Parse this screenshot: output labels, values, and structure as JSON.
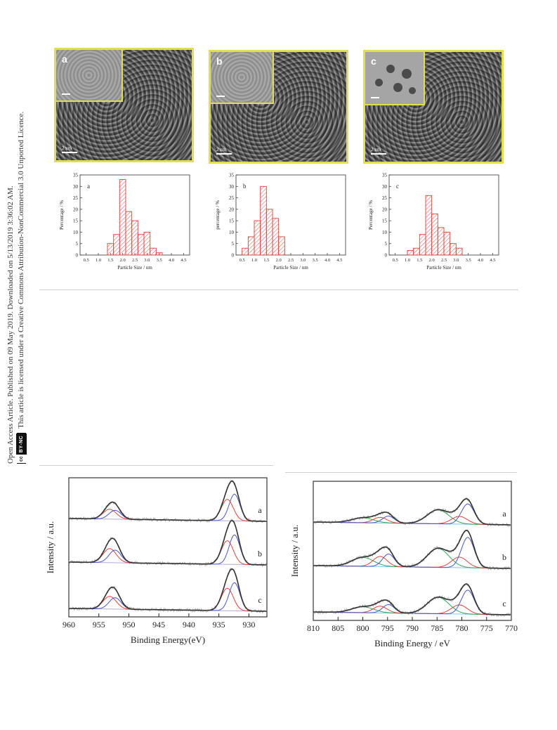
{
  "sidebar": {
    "line1": "Open Access Article. Published on 09 May 2019. Downloaded on 5/13/2019 3:36:02 AM.",
    "line2": "This article is licensed under a Creative Commons Attribution-NonCommercial 3.0 Unported Licence.",
    "badge_cc": "cc",
    "badge_by": "BY-NC"
  },
  "tem_panels": [
    {
      "letter": "a",
      "scale_label": "2 nm"
    },
    {
      "letter": "b",
      "scale_label": "2 nm"
    },
    {
      "letter": "c",
      "scale_label": "2 nm"
    }
  ],
  "chart_data": [
    {
      "type": "bar",
      "panel_label": "a",
      "xlabel": "Particle Size / nm",
      "ylabel": "Percentage / %",
      "xlim": [
        0.25,
        4.75
      ],
      "ylim": [
        0,
        35
      ],
      "xticks": [
        "0.5",
        "1.0",
        "1.5",
        "2.0",
        "2.5",
        "3.0",
        "3.5",
        "4.0",
        "4.5"
      ],
      "yticks": [
        "0",
        "5",
        "10",
        "15",
        "20",
        "25",
        "30",
        "35"
      ],
      "bin_width": 0.25,
      "x": [
        1.5,
        1.75,
        2.0,
        2.25,
        2.5,
        2.75,
        3.0,
        3.25,
        3.5,
        3.75
      ],
      "values": [
        5,
        9,
        33,
        19,
        15,
        9,
        10,
        3,
        1,
        0
      ],
      "color": "#e0413a"
    },
    {
      "type": "bar",
      "panel_label": "b",
      "xlabel": "Particle Size / nm",
      "ylabel": "percentage / %",
      "xlim": [
        0.25,
        4.75
      ],
      "ylim": [
        0,
        35
      ],
      "xticks": [
        "0.5",
        "1.0",
        "1.5",
        "2.0",
        "2.5",
        "3.0",
        "3.5",
        "4.0",
        "4.5"
      ],
      "yticks": [
        "0",
        "5",
        "10",
        "15",
        "20",
        "25",
        "30",
        "35"
      ],
      "bin_width": 0.25,
      "x": [
        0.625,
        0.875,
        1.125,
        1.375,
        1.625,
        1.875,
        2.125,
        2.375
      ],
      "values": [
        3,
        8,
        15,
        30,
        20,
        16,
        8,
        0
      ],
      "color": "#e0413a"
    },
    {
      "type": "bar",
      "panel_label": "c",
      "xlabel": "Particle Size / nm",
      "ylabel": "Percentage / %",
      "xlim": [
        0.25,
        4.75
      ],
      "ylim": [
        0,
        35
      ],
      "xticks": [
        "0.5",
        "1.0",
        "1.5",
        "2.0",
        "2.5",
        "3.0",
        "3.5",
        "4.0",
        "4.5"
      ],
      "yticks": [
        "0",
        "5",
        "10",
        "15",
        "20",
        "25",
        "30",
        "35"
      ],
      "bin_width": 0.25,
      "x": [
        1.125,
        1.375,
        1.625,
        1.875,
        2.125,
        2.375,
        2.625,
        2.875,
        3.125,
        3.375
      ],
      "values": [
        2,
        3,
        9,
        26,
        18,
        12,
        10,
        5,
        3,
        0
      ],
      "color": "#e0413a"
    },
    {
      "type": "line",
      "xlabel": "Binding Energy(eV)",
      "ylabel": "Intensity / a.u.",
      "xlim": [
        960,
        927
      ],
      "xticks": [
        "960",
        "955",
        "950",
        "945",
        "940",
        "935",
        "930"
      ],
      "series_labels": [
        "a",
        "b",
        "c"
      ],
      "peaks": [
        952.5,
        932.5
      ],
      "colors": {
        "data": "#aaaaaa",
        "envelope": "#333333",
        "fit1": "#e0413a",
        "fit2": "#4a55c8",
        "baseline": "#b6a9d9"
      }
    },
    {
      "type": "line",
      "xlabel": "Binding Energy / eV",
      "ylabel": "Intensity / a.u.",
      "xlim": [
        810,
        770
      ],
      "xticks": [
        "810",
        "805",
        "800",
        "795",
        "790",
        "785",
        "780",
        "775",
        "770"
      ],
      "series_labels": [
        "a",
        "b",
        "c"
      ],
      "peaks": [
        800,
        795,
        784.5,
        780,
        778.5
      ],
      "colors": {
        "data": "#aaaaaa",
        "envelope": "#333333",
        "fit1": "#e0413a",
        "fit2": "#4a55c8",
        "fit3": "#33a35a",
        "baseline": "#7ec8e3"
      }
    }
  ]
}
